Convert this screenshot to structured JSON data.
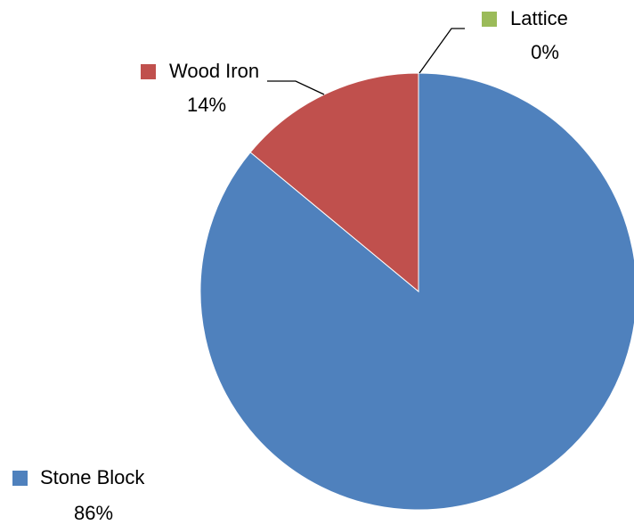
{
  "chart_data": {
    "type": "pie",
    "categories": [
      "Stone Block",
      "Wood Iron",
      "Lattice"
    ],
    "values": [
      86,
      14,
      0
    ],
    "value_labels": [
      "86%",
      "14%",
      "0%"
    ],
    "colors": [
      "#4f81bd",
      "#c0504d",
      "#9bbb59"
    ]
  }
}
